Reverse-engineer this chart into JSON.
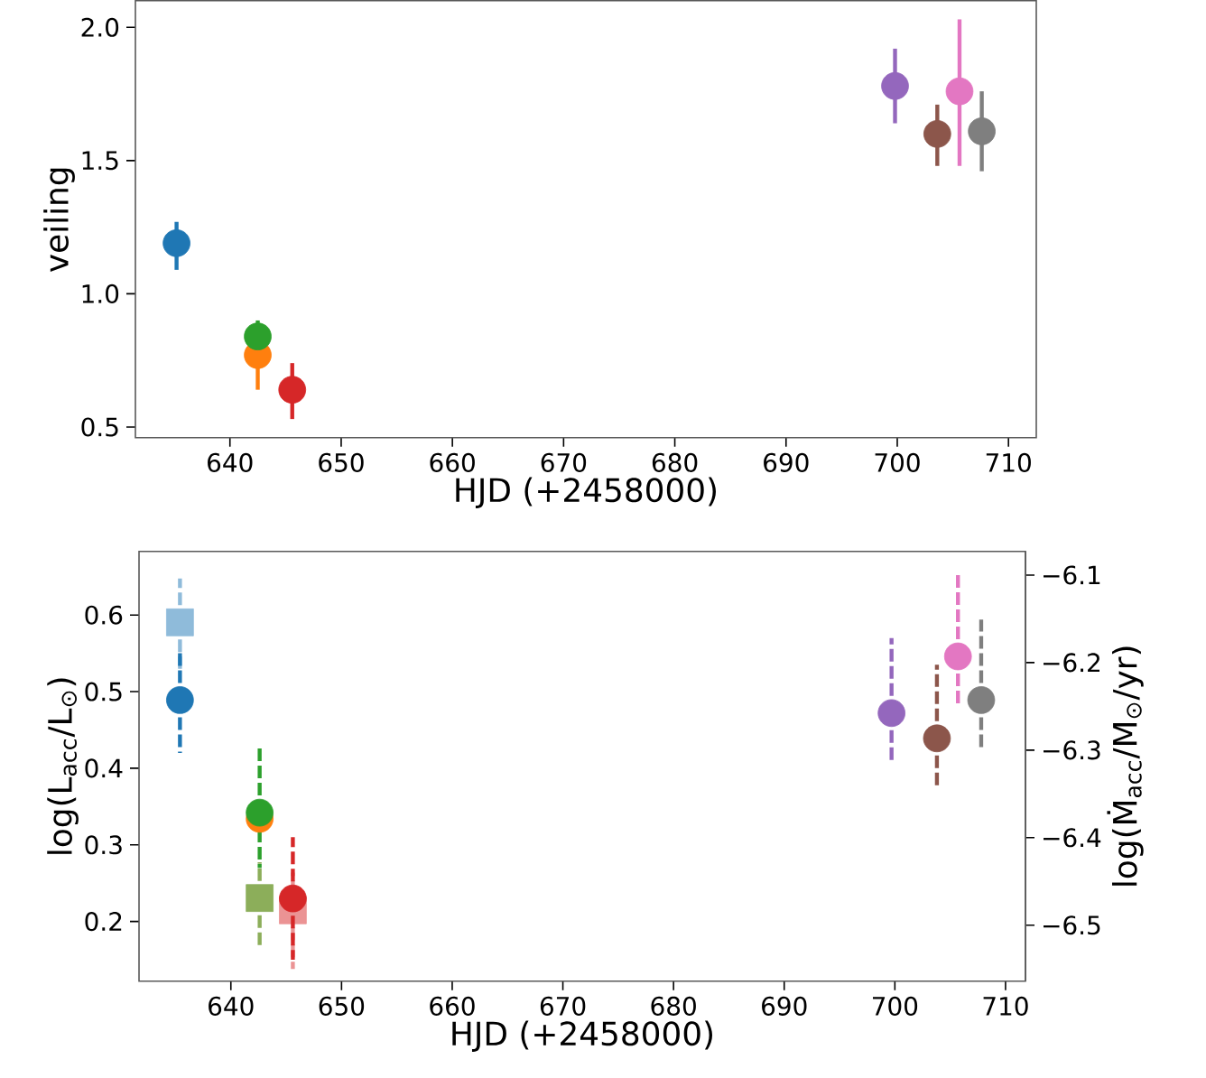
{
  "chart_data": [
    {
      "type": "scatter",
      "xlabel": "HJD (+2458000)",
      "ylabel": "veiling",
      "marker": "circle",
      "xlim": [
        631.5,
        712.5
      ],
      "ylim": [
        0.46,
        2.1
      ],
      "xticks": [
        640,
        650,
        660,
        670,
        680,
        690,
        700,
        710
      ],
      "yticks": [
        0.5,
        {
          "value": 1.0,
          "label": "1.0"
        },
        1.5,
        {
          "value": 2.0,
          "label": "2.0"
        }
      ],
      "series": [
        {
          "x": [
            635.2,
            642.5,
            642.5,
            645.6,
            699.8,
            703.6,
            705.6,
            707.6
          ],
          "values": [
            1.19,
            0.77,
            0.84,
            0.64,
            1.78,
            1.6,
            1.76,
            1.61
          ],
          "errors": [
            [
              1.09,
              1.27
            ],
            [
              0.64,
              0.77
            ],
            [
              0.79,
              0.9
            ],
            [
              0.53,
              0.74
            ],
            [
              1.64,
              1.92
            ],
            [
              1.48,
              1.71
            ],
            [
              1.48,
              2.03
            ],
            [
              1.46,
              1.76
            ]
          ],
          "colors": [
            "#1f77b4",
            "#ff7f0e",
            "#2ca02c",
            "#d62728",
            "#9467bd",
            "#8c564b",
            "#e377c2",
            "#7f7f7f"
          ]
        }
      ]
    },
    {
      "type": "scatter",
      "xlabel": "HJD (+2458000)",
      "ylabel": "log(L$_{acc}$/L$_{⊙}$)",
      "y2label": "log(Ṁ$_{acc}$/M$_{⊙}$/yr)",
      "xlim": [
        631.7,
        711.8
      ],
      "ylim": [
        0.122,
        0.683
      ],
      "y2lim": [
        -6.564,
        -6.073
      ],
      "xticks": [
        640,
        650,
        660,
        670,
        680,
        690,
        700,
        710
      ],
      "yticks": [
        0.2,
        0.3,
        0.4,
        0.5,
        0.6
      ],
      "y2ticks": [
        {
          "value": -6.5,
          "label": "−6.5"
        },
        {
          "value": -6.4,
          "label": "−6.4"
        },
        {
          "value": -6.3,
          "label": "−6.3"
        },
        {
          "value": -6.2,
          "label": "−6.2"
        },
        {
          "value": -6.1,
          "label": "−6.1"
        }
      ],
      "series": [
        {
          "axis": "y2",
          "marker": "square",
          "line_style": "dashed",
          "x": [
            635.4,
            642.6,
            645.6
          ],
          "values": [
            -6.154,
            -6.469,
            -6.483
          ],
          "errors": [
            [
              -6.207,
              -6.104
            ],
            [
              -6.523,
              -6.428
            ],
            [
              -6.55,
              -6.44
            ]
          ],
          "colors": [
            "#8fbbda",
            "#8cae5a",
            "#eb9394"
          ]
        },
        {
          "axis": "y",
          "marker": "circle",
          "line_style": "dashed",
          "x": [
            635.4,
            642.6,
            642.6,
            645.6,
            699.7,
            703.8,
            705.7,
            707.8
          ],
          "values": [
            0.489,
            0.334,
            0.342,
            0.23,
            0.472,
            0.439,
            0.546,
            0.489
          ],
          "errors": [
            [
              0.42,
              0.555
            ],
            null,
            [
              0.27,
              0.428
            ],
            [
              0.15,
              0.31
            ],
            [
              0.405,
              0.57
            ],
            [
              0.375,
              0.535
            ],
            [
              0.482,
              0.655
            ],
            [
              0.425,
              0.594
            ]
          ],
          "colors": [
            "#1f77b4",
            "#ff7f0e",
            "#2ca02c",
            "#d62728",
            "#9467bd",
            "#8c564b",
            "#e377c2",
            "#7f7f7f"
          ]
        }
      ]
    }
  ]
}
